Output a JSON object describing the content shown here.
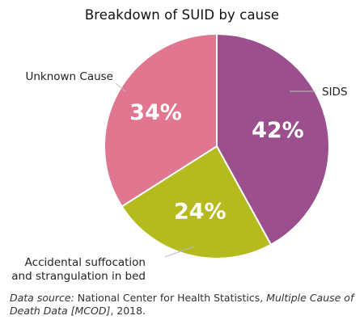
{
  "chart_data": {
    "type": "pie",
    "title": "Breakdown of SUID by cause",
    "slices": [
      {
        "name": "SIDS",
        "value": 42,
        "value_label": "42%",
        "color": "#9b4f8d",
        "label_lines": [
          "SIDS"
        ]
      },
      {
        "name": "Accidental suffocation and strangulation in bed",
        "value": 24,
        "value_label": "24%",
        "color": "#b5bb1f",
        "label_lines": [
          "Accidental suffocation",
          "and strangulation in bed"
        ]
      },
      {
        "name": "Unknown Cause",
        "value": 34,
        "value_label": "34%",
        "color": "#e0768f",
        "label_lines": [
          "Unknown Cause"
        ]
      }
    ],
    "start_angle_deg": 0,
    "direction": "clockwise",
    "slice_border_color": "#ffffff",
    "leader_line_color": "#bbbbbb"
  },
  "source": {
    "line1_italic_a": "Data source:",
    "line1_plain": " National Center for Health Statistics, ",
    "line1_italic_b": "Multiple Cause of",
    "line2_italic": "Death Data [MCOD]",
    "line2_plain": ", 2018."
  }
}
